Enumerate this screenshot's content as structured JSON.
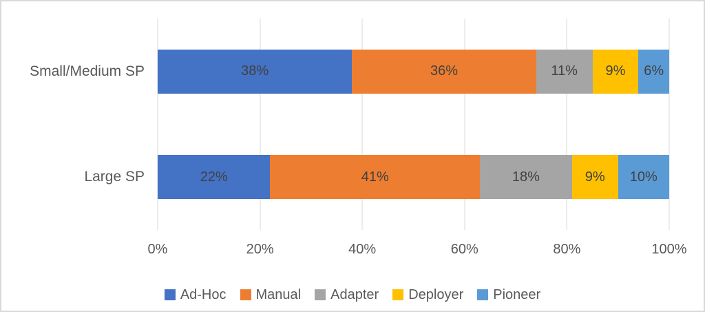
{
  "chart_data": {
    "type": "bar",
    "orientation": "horizontal",
    "stacked": true,
    "categories": [
      "Small/Medium SP",
      "Large SP"
    ],
    "series": [
      {
        "name": "Ad-Hoc",
        "color": "#4472C4",
        "values": [
          38,
          22
        ]
      },
      {
        "name": "Manual",
        "color": "#ED7D31",
        "values": [
          36,
          41
        ]
      },
      {
        "name": "Adapter",
        "color": "#A5A5A5",
        "values": [
          11,
          18
        ]
      },
      {
        "name": "Deployer",
        "color": "#FFC000",
        "values": [
          9,
          9
        ]
      },
      {
        "name": "Pioneer",
        "color": "#5B9BD5",
        "values": [
          6,
          10
        ]
      }
    ],
    "data_label_suffix": "%",
    "x_axis": {
      "min": 0,
      "max": 100,
      "ticks": [
        {
          "value": 0,
          "label": "0%"
        },
        {
          "value": 20,
          "label": "20%"
        },
        {
          "value": 40,
          "label": "40%"
        },
        {
          "value": 60,
          "label": "60%"
        },
        {
          "value": 80,
          "label": "80%"
        },
        {
          "value": 100,
          "label": "100%"
        }
      ]
    },
    "grid": true,
    "legend_position": "bottom"
  },
  "colors": {
    "gridline": "#D9D9D9",
    "frame_border": "#D9D9D9",
    "axis_text": "#595959",
    "data_label_text": "#404040"
  }
}
